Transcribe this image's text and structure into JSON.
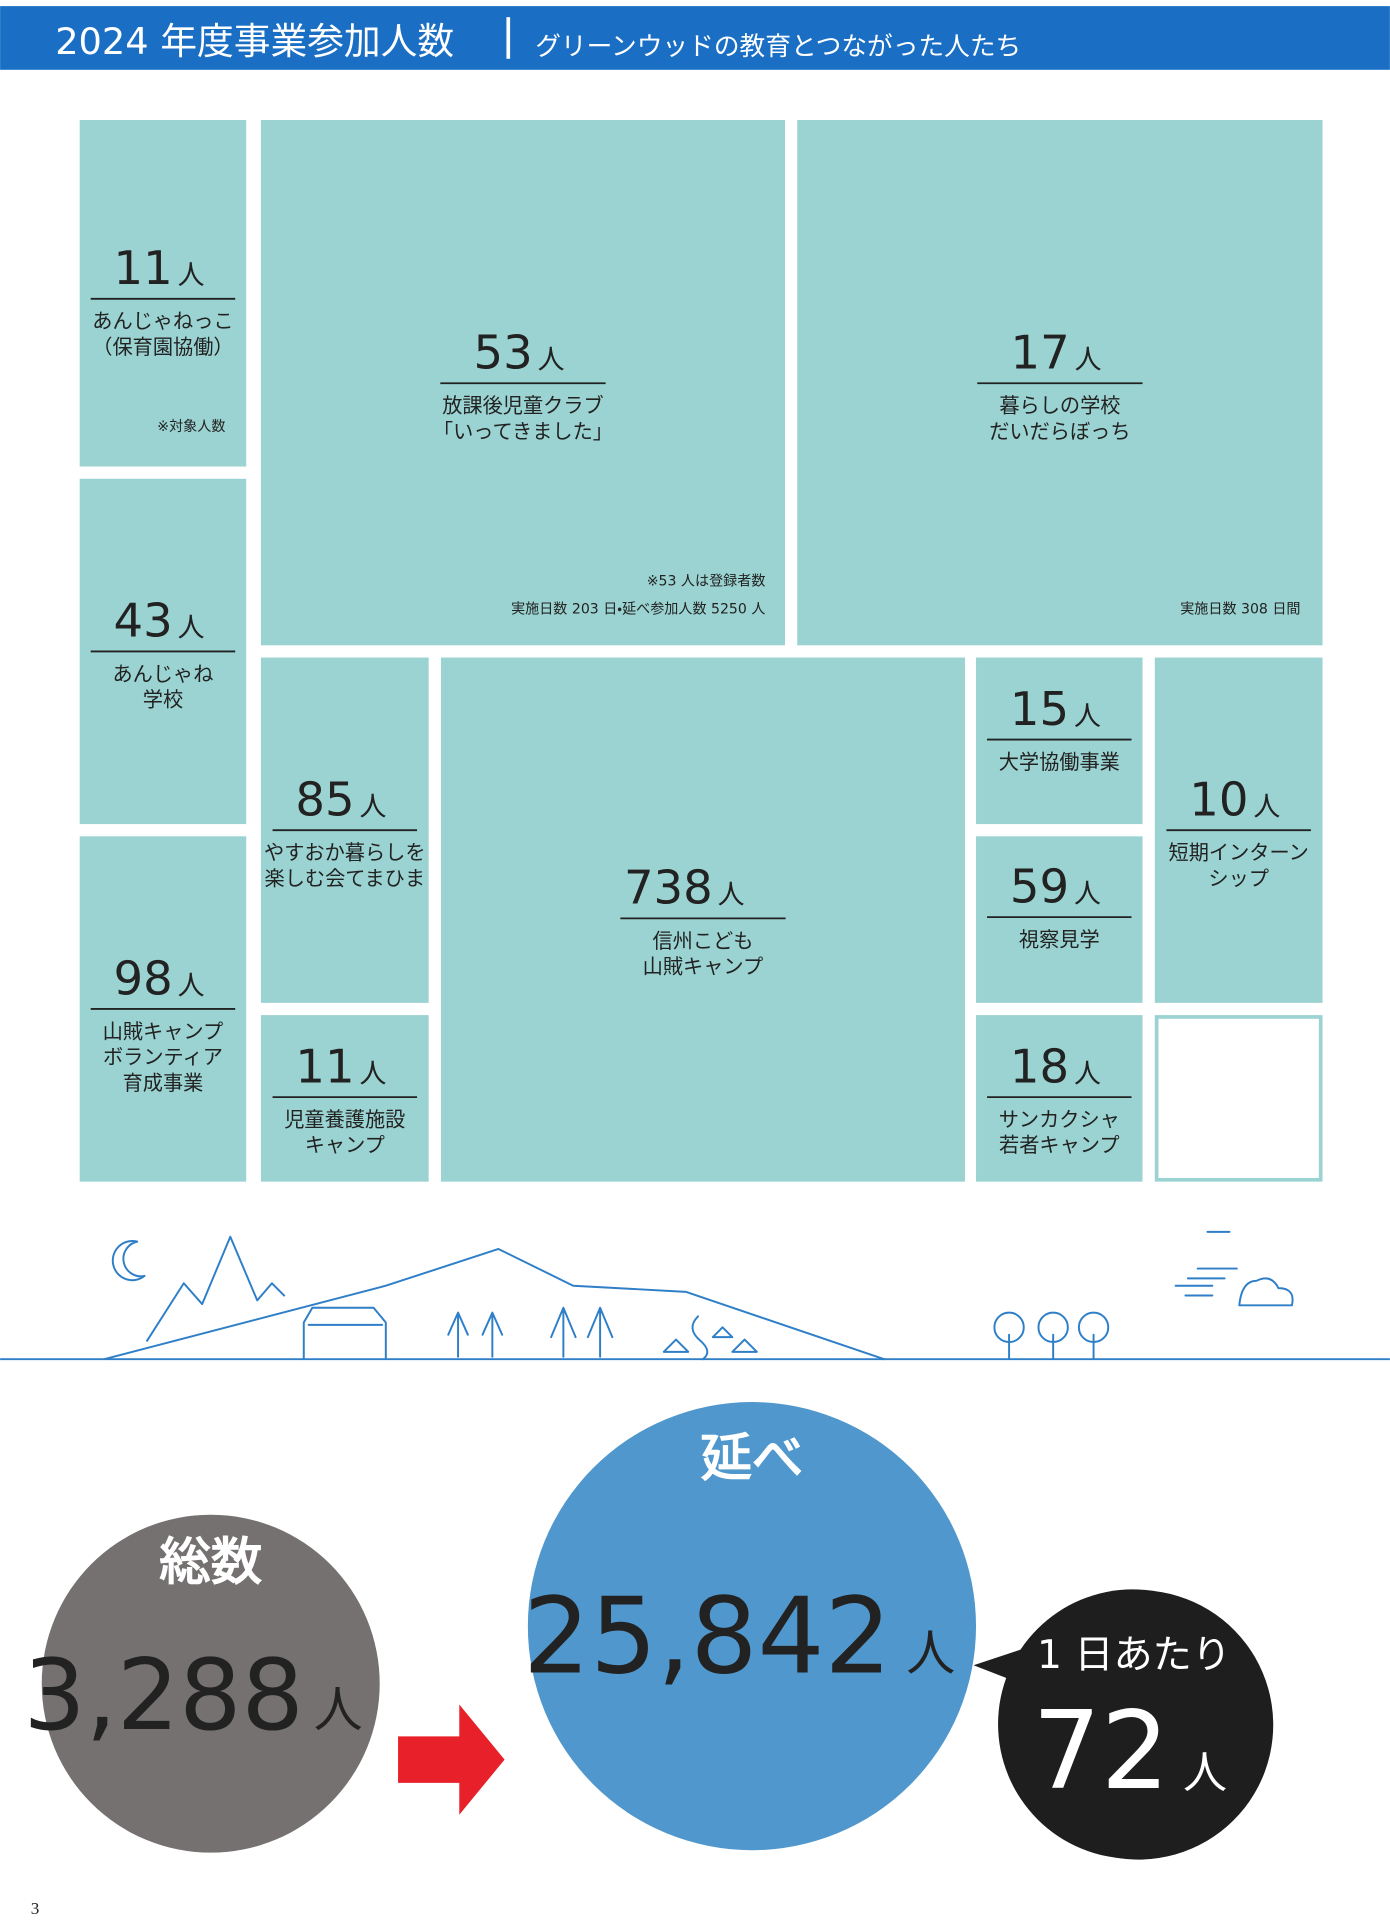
{
  "header": {
    "title": "2024 年度事業参加人数",
    "subtitle": "グリーンウッドの教育とつながった人たち"
  },
  "unit": "人",
  "tiles": [
    {
      "count": 11,
      "name": [
        "あんじゃねっこ",
        "（保育園協働）"
      ],
      "notes": [
        "※対象人数"
      ]
    },
    {
      "count": 43,
      "name": [
        "あんじゃね",
        "学校"
      ]
    },
    {
      "count": 98,
      "name": [
        "山賊キャンプ",
        "ボランティア",
        "育成事業"
      ]
    },
    {
      "count": 53,
      "name": [
        "放課後児童クラブ",
        "「いってきました」"
      ],
      "notes": [
        "※53 人は登録者数",
        "実施日数 203 日・延べ参加人数 5250 人"
      ]
    },
    {
      "count": 17,
      "name": [
        "暮らしの学校",
        "だいだらぼっち"
      ],
      "notes": [
        "実施日数 308 日間"
      ]
    },
    {
      "count": 85,
      "name": [
        "やすおか暮らしを",
        "楽しむ会てまひま"
      ]
    },
    {
      "count": 11,
      "name": [
        "児童養護施設",
        "キャンプ"
      ]
    },
    {
      "count": 738,
      "name": [
        "信州こども",
        "山賊キャンプ"
      ]
    },
    {
      "count": 15,
      "name": [
        "大学協働事業"
      ]
    },
    {
      "count": 59,
      "name": [
        "視察見学"
      ]
    },
    {
      "count": 18,
      "name": [
        "サンカクシャ",
        "若者キャンプ"
      ]
    },
    {
      "count": 10,
      "name": [
        "短期インターン",
        "シップ"
      ]
    }
  ],
  "totals": {
    "total": {
      "label": "総数",
      "count": "3,288"
    },
    "cumulative": {
      "label": "延べ",
      "count": "25,842"
    },
    "per_day": {
      "label": "1 日あたり",
      "count": 72
    }
  },
  "page_number": 3
}
